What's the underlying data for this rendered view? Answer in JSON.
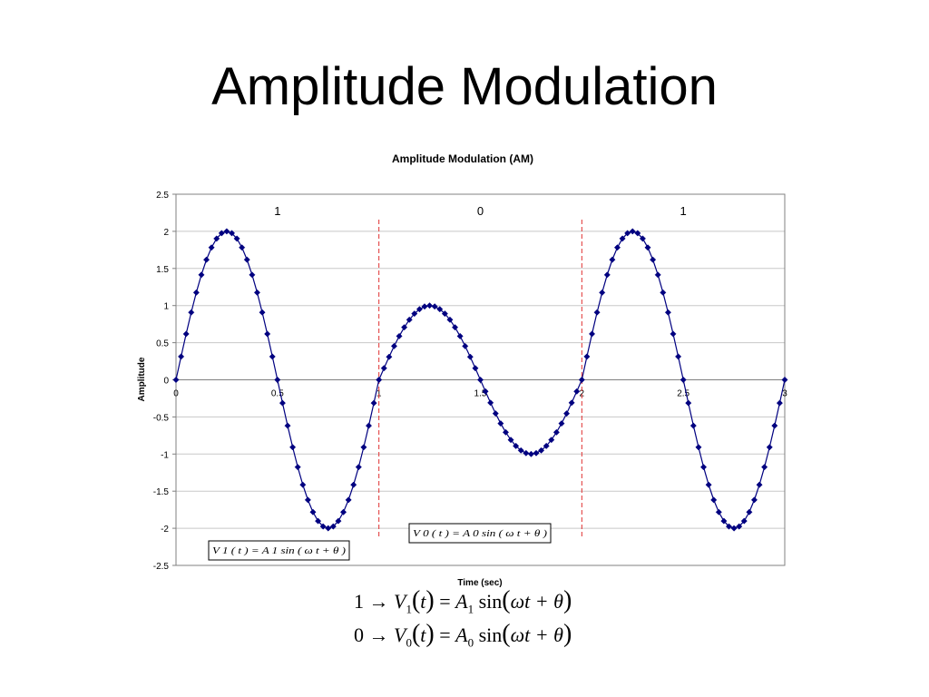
{
  "slide": {
    "title": "Amplitude Modulation",
    "equations": {
      "line1": {
        "bit": "1",
        "arrow": "→",
        "v": "V",
        "v_sub": "1",
        "t": "t",
        "equals": "=",
        "a": "A",
        "a_sub": "1",
        "func": "sin",
        "arg": "ωt + θ"
      },
      "line2": {
        "bit": "0",
        "arrow": "→",
        "v": "V",
        "v_sub": "0",
        "t": "t",
        "equals": "=",
        "a": "A",
        "a_sub": "0",
        "func": "sin",
        "arg": "ωt + θ"
      }
    }
  },
  "chart_data": {
    "type": "line",
    "title": "Amplitude Modulation (AM)",
    "xlabel": "Time (sec)",
    "ylabel": "Amplitude",
    "xlim": [
      0,
      3
    ],
    "ylim": [
      -2.5,
      2.5
    ],
    "x_ticks": [
      "0",
      "0.5",
      "1",
      "1.5",
      "2",
      "2.5",
      "3"
    ],
    "y_ticks": [
      "2.5",
      "2",
      "1.5",
      "1",
      "0.5",
      "0",
      "-0.5",
      "-1",
      "-1.5",
      "-2",
      "-2.5"
    ],
    "grid": true,
    "marker": "diamond",
    "line_color": "#000080",
    "marker_color": "#000080",
    "series": [
      {
        "frequency_hz": 1,
        "segments": [
          {
            "x_range": [
              0,
              1
            ],
            "amplitude": 2
          },
          {
            "x_range": [
              1,
              2
            ],
            "amplitude": 1
          },
          {
            "x_range": [
              2,
              3
            ],
            "amplitude": 2
          }
        ],
        "step": 0.025
      }
    ],
    "dividers": [
      {
        "x": 1,
        "color": "#e03030",
        "style": "dashed"
      },
      {
        "x": 2,
        "color": "#e03030",
        "style": "dashed"
      }
    ],
    "bit_labels": [
      {
        "x": 0.5,
        "text": "1"
      },
      {
        "x": 1.5,
        "text": "0"
      },
      {
        "x": 2.5,
        "text": "1"
      }
    ],
    "annotations": [
      {
        "text": "V 1 ( t ) =  A 1  sin  ( ω  t  +  θ  )"
      },
      {
        "text": "V 0 ( t ) =  A 0  sin  ( ω  t  +  θ  )"
      }
    ]
  }
}
